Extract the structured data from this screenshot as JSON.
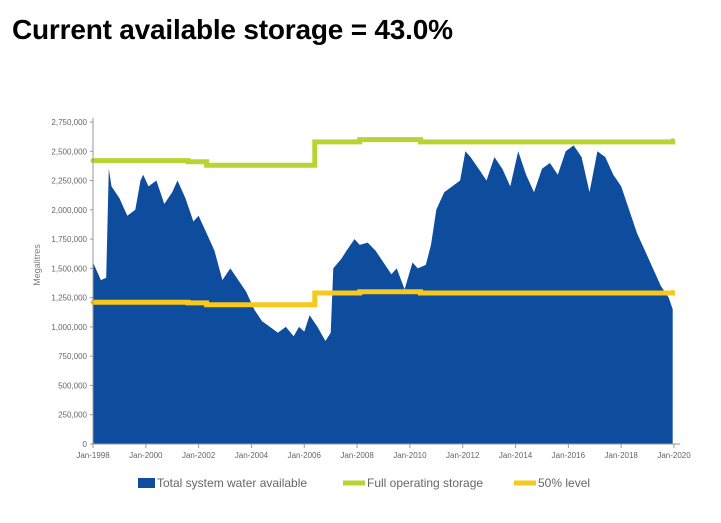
{
  "headline": "Current available storage = 43.0%",
  "chart_data": {
    "type": "area",
    "title": "Current available storage = 43.0%",
    "xlabel": "",
    "ylabel": "Megalitres",
    "x_start": 1998.0,
    "x_end": 2020.0,
    "xlim": [
      1998.0,
      2020.0
    ],
    "ylim": [
      0,
      2750000
    ],
    "y_ticks": [
      0,
      250000,
      500000,
      750000,
      1000000,
      1250000,
      1500000,
      1750000,
      2000000,
      2250000,
      2500000,
      2750000
    ],
    "y_tick_labels": [
      "0",
      "250,000",
      "500,000",
      "750,000",
      "1,000,000",
      "1,250,000",
      "1,500,000",
      "1,750,000",
      "2,000,000",
      "2,250,000",
      "2,500,000",
      "2,750,000"
    ],
    "x_ticks": [
      1998,
      2000,
      2002,
      2004,
      2006,
      2008,
      2010,
      2012,
      2014,
      2016,
      2018,
      2020
    ],
    "x_tick_labels": [
      "Jan-1998",
      "Jan-2000",
      "Jan-2002",
      "Jan-2004",
      "Jan-2006",
      "Jan-2008",
      "Jan-2010",
      "Jan-2012",
      "Jan-2014",
      "Jan-2016",
      "Jan-2018",
      "Jan-2020"
    ],
    "series": [
      {
        "name": "Total system water available",
        "kind": "area",
        "color": "#0e4c9e",
        "x": [
          1998.0,
          1998.2,
          1998.3,
          1998.5,
          1998.6,
          1998.7,
          1999.0,
          1999.3,
          1999.6,
          1999.8,
          1999.9,
          2000.1,
          2000.4,
          2000.7,
          2001.0,
          2001.2,
          2001.5,
          2001.8,
          2002.0,
          2002.3,
          2002.6,
          2002.9,
          2003.2,
          2003.5,
          2003.8,
          2004.1,
          2004.4,
          2004.7,
          2005.0,
          2005.3,
          2005.6,
          2005.8,
          2006.0,
          2006.2,
          2006.5,
          2006.8,
          2007.0,
          2007.1,
          2007.4,
          2007.6,
          2007.9,
          2008.1,
          2008.4,
          2008.7,
          2009.0,
          2009.3,
          2009.5,
          2009.8,
          2010.1,
          2010.3,
          2010.6,
          2010.8,
          2011.0,
          2011.3,
          2011.6,
          2011.9,
          2012.1,
          2012.3,
          2012.6,
          2012.9,
          2013.2,
          2013.5,
          2013.8,
          2014.1,
          2014.4,
          2014.7,
          2015.0,
          2015.3,
          2015.6,
          2015.9,
          2016.2,
          2016.5,
          2016.8,
          2017.1,
          2017.4,
          2017.7,
          2018.0,
          2018.3,
          2018.6,
          2018.9,
          2019.2,
          2019.5,
          2019.8,
          2019.95
        ],
        "values": [
          1550000,
          1450000,
          1400000,
          1420000,
          2350000,
          2200000,
          2100000,
          1950000,
          2000000,
          2250000,
          2300000,
          2200000,
          2250000,
          2050000,
          2150000,
          2250000,
          2100000,
          1900000,
          1950000,
          1800000,
          1650000,
          1400000,
          1500000,
          1400000,
          1300000,
          1150000,
          1050000,
          1000000,
          950000,
          1000000,
          920000,
          1000000,
          960000,
          1100000,
          1000000,
          880000,
          950000,
          1500000,
          1580000,
          1650000,
          1750000,
          1700000,
          1720000,
          1650000,
          1550000,
          1450000,
          1500000,
          1320000,
          1550000,
          1500000,
          1530000,
          1700000,
          2000000,
          2150000,
          2200000,
          2250000,
          2500000,
          2450000,
          2350000,
          2250000,
          2450000,
          2350000,
          2200000,
          2500000,
          2300000,
          2150000,
          2350000,
          2400000,
          2300000,
          2500000,
          2550000,
          2450000,
          2150000,
          2500000,
          2450000,
          2300000,
          2200000,
          2000000,
          1800000,
          1650000,
          1500000,
          1350000,
          1250000,
          1150000
        ]
      },
      {
        "name": "Full operating storage",
        "kind": "step-line",
        "color": "#b8d432",
        "x": [
          1998.0,
          2000.5,
          2001.6,
          2002.3,
          2006.4,
          2008.1,
          2010.4,
          2019.95
        ],
        "values": [
          2420000,
          2420000,
          2410000,
          2380000,
          2580000,
          2600000,
          2580000,
          2590000
        ]
      },
      {
        "name": "50% level",
        "kind": "step-line",
        "color": "#f7c81e",
        "x": [
          1998.0,
          2000.5,
          2001.6,
          2002.3,
          2006.4,
          2008.1,
          2010.4,
          2019.95
        ],
        "values": [
          1210000,
          1210000,
          1205000,
          1190000,
          1290000,
          1300000,
          1290000,
          1295000
        ]
      }
    ]
  }
}
